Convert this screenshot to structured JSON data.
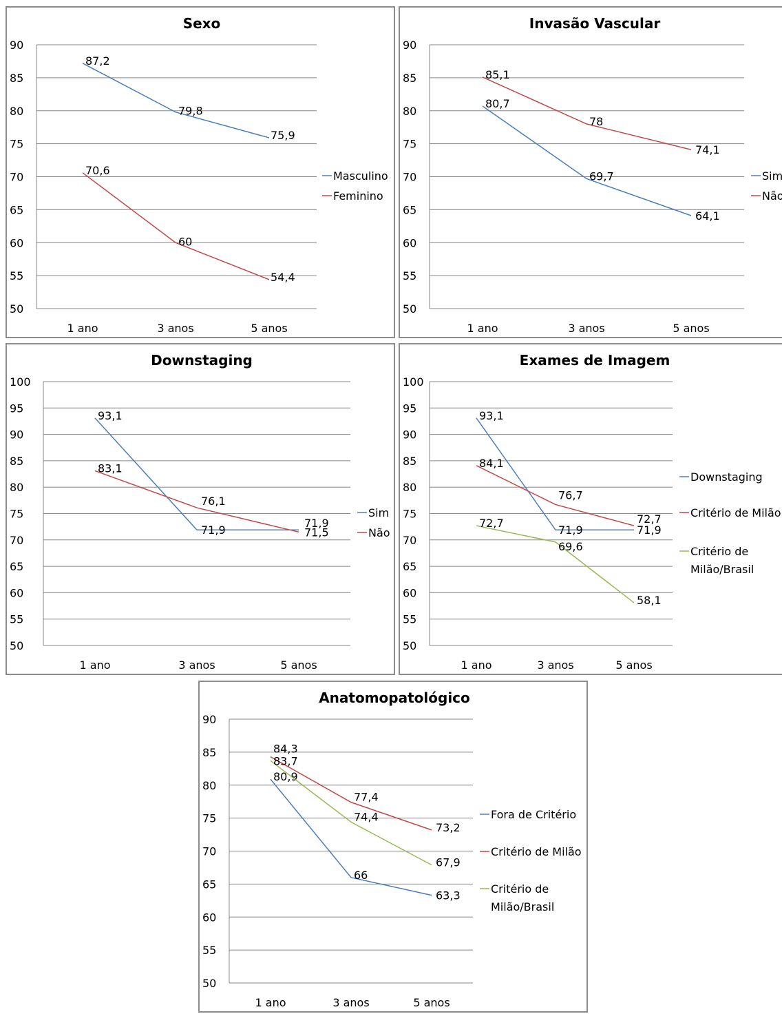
{
  "chart_data": [
    {
      "type": "line",
      "title": "Sexo",
      "categories": [
        "1 ano",
        "3 anos",
        "5 anos"
      ],
      "ylim": [
        50,
        90
      ],
      "ystep": 5,
      "yticks": [
        "50",
        "55",
        "60",
        "65",
        "70",
        "75",
        "80",
        "85",
        "90"
      ],
      "grid": true,
      "legend": "right",
      "series": [
        {
          "name": "Masculino",
          "color": "#4a7ebb",
          "values": [
            87.2,
            79.8,
            75.9
          ],
          "labels": [
            "87,2",
            "79,8",
            "75,9"
          ]
        },
        {
          "name": "Feminino",
          "color": "#be4b48",
          "values": [
            70.6,
            60,
            54.4
          ],
          "labels": [
            "70,6",
            "60",
            "54,4"
          ]
        }
      ]
    },
    {
      "type": "line",
      "title": "Invasão Vascular",
      "categories": [
        "1 ano",
        "3 anos",
        "5 anos"
      ],
      "ylim": [
        50,
        90
      ],
      "ystep": 5,
      "yticks": [
        "50",
        "55",
        "60",
        "65",
        "70",
        "75",
        "80",
        "85",
        "90"
      ],
      "grid": true,
      "legend": "right",
      "series": [
        {
          "name": "Sim",
          "color": "#4a7ebb",
          "values": [
            80.7,
            69.7,
            64.1
          ],
          "labels": [
            "80,7",
            "69,7",
            "64,1"
          ]
        },
        {
          "name": "Não",
          "color": "#be4b48",
          "values": [
            85.1,
            78,
            74.1
          ],
          "labels": [
            "85,1",
            "78",
            "74,1"
          ]
        }
      ]
    },
    {
      "type": "line",
      "title": "Downstaging",
      "categories": [
        "1 ano",
        "3 anos",
        "5 anos"
      ],
      "ylim": [
        50,
        100
      ],
      "ystep": 5,
      "yticks": [
        "50",
        "55",
        "60",
        "65",
        "70",
        "75",
        "80",
        "85",
        "90",
        "95",
        "100"
      ],
      "grid": true,
      "legend": "right",
      "series": [
        {
          "name": "Sim",
          "color": "#4a7ebb",
          "values": [
            93.1,
            71.9,
            71.9
          ],
          "labels": [
            "93,1",
            "71,9",
            "71,9"
          ]
        },
        {
          "name": "Não",
          "color": "#be4b48",
          "values": [
            83.1,
            76.1,
            71.5
          ],
          "labels": [
            "83,1",
            "76,1",
            "71,5"
          ]
        }
      ]
    },
    {
      "type": "line",
      "title": "Exames de Imagem",
      "categories": [
        "1 ano",
        "3 anos",
        "5 anos"
      ],
      "ylim": [
        50,
        100
      ],
      "ystep": 5,
      "yticks": [
        "50",
        "55",
        "60",
        "65",
        "70",
        "75",
        "80",
        "85",
        "90",
        "95",
        "100"
      ],
      "grid": true,
      "legend": "right",
      "series": [
        {
          "name": "Downstaging",
          "color": "#4a7ebb",
          "values": [
            93.1,
            71.9,
            71.9
          ],
          "labels": [
            "93,1",
            "71,9",
            "71,9"
          ]
        },
        {
          "name": "Critério de Milão",
          "color": "#be4b48",
          "values": [
            84.1,
            76.7,
            72.7
          ],
          "labels": [
            "84,1",
            "76,7",
            "72,7"
          ]
        },
        {
          "name": "Critério de Milão/Brasil",
          "color": "#98b954",
          "values": [
            72.7,
            69.6,
            58.1
          ],
          "labels": [
            "72,7",
            "69,6",
            "58,1"
          ]
        }
      ]
    },
    {
      "type": "line",
      "title": "Anatomopatológico",
      "categories": [
        "1 ano",
        "3 anos",
        "5 anos"
      ],
      "ylim": [
        50,
        90
      ],
      "ystep": 5,
      "yticks": [
        "50",
        "55",
        "60",
        "65",
        "70",
        "75",
        "80",
        "85",
        "90"
      ],
      "grid": true,
      "legend": "right",
      "series": [
        {
          "name": "Fora de Critério",
          "color": "#4a7ebb",
          "values": [
            80.9,
            66,
            63.3
          ],
          "labels": [
            "80,9",
            "66",
            "63,3"
          ]
        },
        {
          "name": "Critério de Milão",
          "color": "#be4b48",
          "values": [
            84.3,
            77.4,
            73.2
          ],
          "labels": [
            "84,3",
            "77,4",
            "73,2"
          ]
        },
        {
          "name": "Critério de Milão/Brasil",
          "color": "#98b954",
          "values": [
            83.7,
            74.4,
            67.9
          ],
          "labels": [
            "83,7",
            "74,4",
            "67,9"
          ]
        }
      ]
    }
  ]
}
